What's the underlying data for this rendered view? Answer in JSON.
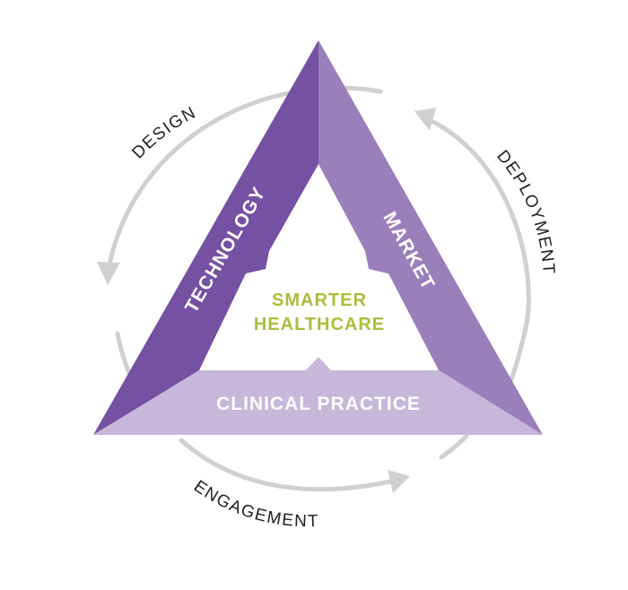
{
  "colors": {
    "technology": "#7551a3",
    "market": "#9a7fba",
    "clinical_practice": "#c7b7db",
    "center_text": "#a6c03c",
    "cycle_arrows": "#d0d0d0",
    "cycle_text": "#222222"
  },
  "sides": {
    "technology": "TECHNOLOGY",
    "market": "MARKET",
    "clinical_practice": "CLINICAL PRACTICE"
  },
  "center": {
    "line1": "SMARTER",
    "line2": "HEALTHCARE"
  },
  "cycle": {
    "design": "DESIGN",
    "deployment": "DEPLOYMENT",
    "engagement": "ENGAGEMENT"
  }
}
